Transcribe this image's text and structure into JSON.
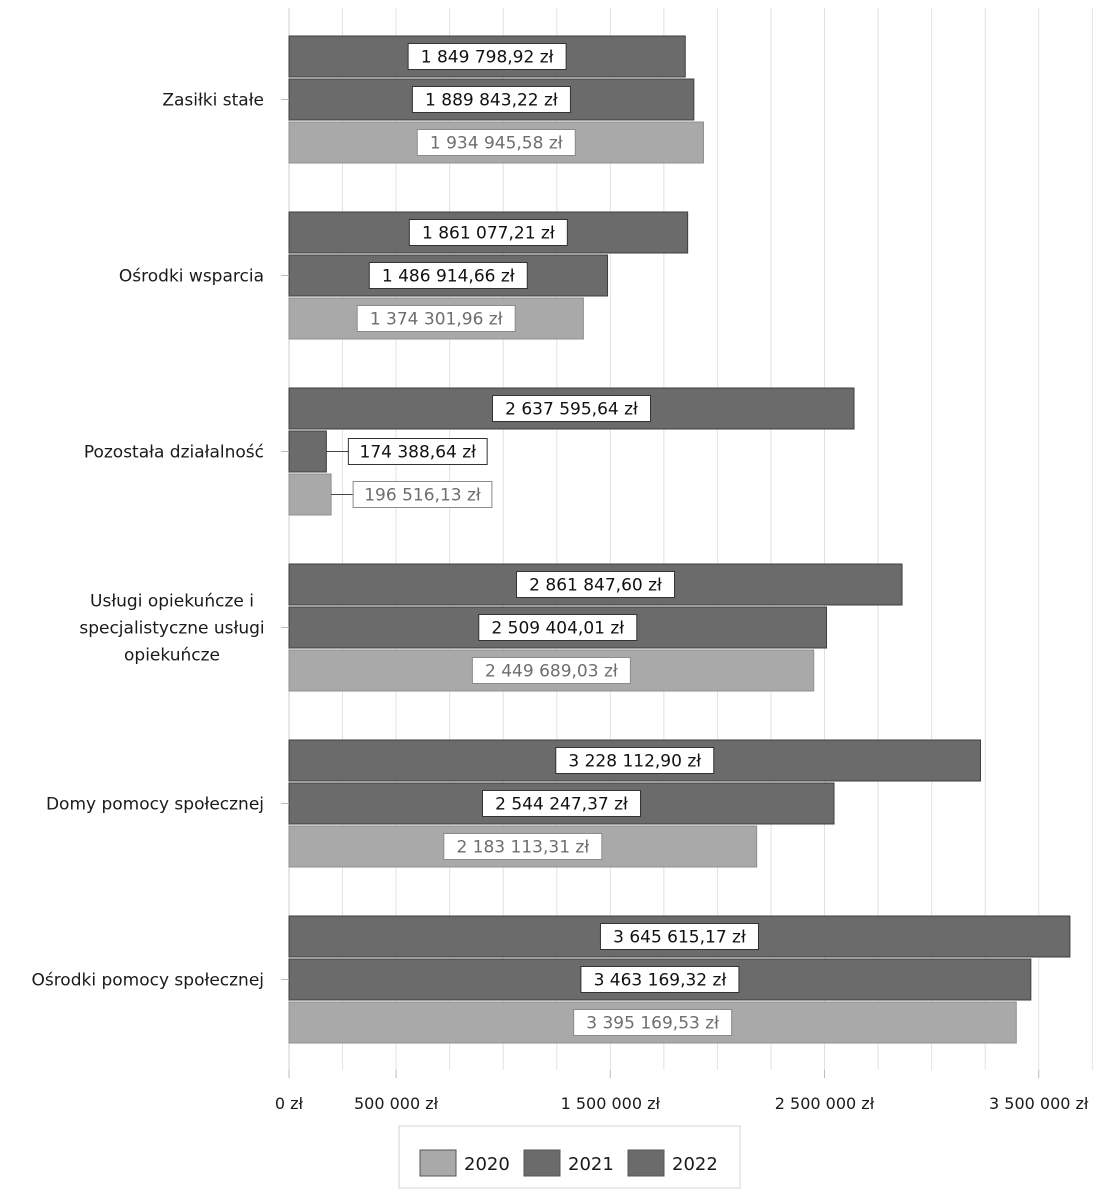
{
  "chart_data": {
    "type": "bar",
    "orientation": "horizontal",
    "categories": [
      "Zasiłki stałe",
      "Ośrodki wsparcia",
      "Pozostała działalność",
      "Usługi opiekuńcze i specjalistyczne usługi opiekuńcze",
      "Domy pomocy społecznej",
      "Ośrodki pomocy społecznej"
    ],
    "series": [
      {
        "name": "2022",
        "color": "#6b6b6b",
        "values": [
          1849798.92,
          1861077.21,
          2637595.64,
          2861847.6,
          3228112.9,
          3645615.17
        ],
        "labels": [
          "1 849 798,92 zł",
          "1 861 077,21 zł",
          "2 637 595,64 zł",
          "2 861 847,60 zł",
          "3 228 112,90 zł",
          "3 645 615,17 zł"
        ]
      },
      {
        "name": "2021",
        "color": "#6b6b6b",
        "values": [
          1889843.22,
          1486914.66,
          174388.64,
          2509404.01,
          2544247.37,
          3463169.32
        ],
        "labels": [
          "1 889 843,22 zł",
          "1 486 914,66 zł",
          "174 388,64 zł",
          "2 509 404,01 zł",
          "2 544 247,37 zł",
          "3 463 169,32 zł"
        ]
      },
      {
        "name": "2020",
        "color": "#a9a9a9",
        "values": [
          1934945.58,
          1374301.96,
          196516.13,
          2449689.03,
          2183113.31,
          3395169.53
        ],
        "labels": [
          "1 934 945,58 zł",
          "1 374 301,96 zł",
          "196 516,13 zł",
          "2 449 689,03 zł",
          "2 183 113,31 zł",
          "3 395 169,53 zł"
        ]
      }
    ],
    "xlim": [
      0,
      3800000
    ],
    "x_ticks": [
      0,
      500000,
      1500000,
      2500000,
      3500000
    ],
    "x_tick_labels": [
      "0 zł",
      "500 000 zł",
      "1 500 000 zł",
      "2 500 000 zł",
      "3 500 000 zł"
    ],
    "grid": true,
    "legend": {
      "placement": "bottom",
      "entries": [
        {
          "name": "2020",
          "color": "#a9a9a9"
        },
        {
          "name": "2021",
          "color": "#6b6b6b"
        },
        {
          "name": "2022",
          "color": "#6b6b6b"
        }
      ]
    }
  }
}
